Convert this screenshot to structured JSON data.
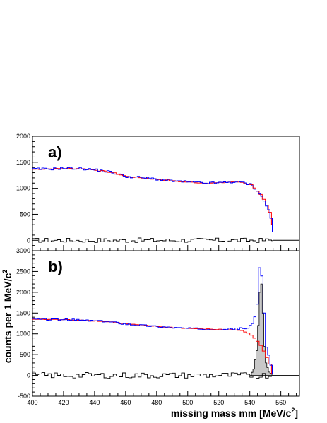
{
  "colors": {
    "data_hist": "#0000ff",
    "fit_curve": "#ff0000",
    "residual_hist": "#000000",
    "signal_fill": "#c8c8c8",
    "frame": "#000000"
  },
  "labels": {
    "xlabel_main": "missing mass mm [MeV/c",
    "xlabel_sup": "2",
    "xlabel_end": "]",
    "ylabel_main": "counts per 1 MeV/c",
    "ylabel_sup": "2"
  },
  "chart_data": [
    {
      "type": "histogram",
      "panel_label": "a)",
      "xlim": [
        400,
        572
      ],
      "ylim": [
        -200,
        2000
      ],
      "x_ticks": [],
      "y_ticks": [
        "0",
        "500",
        "1000",
        "1500",
        "2000"
      ],
      "grid": false,
      "series": [
        {
          "role": "data",
          "x": [
            400,
            410,
            420,
            430,
            440,
            450,
            460,
            470,
            480,
            490,
            500,
            510,
            520,
            530,
            535,
            540,
            543,
            546,
            549,
            552,
            554,
            555
          ],
          "y": [
            1370,
            1370,
            1385,
            1380,
            1355,
            1310,
            1225,
            1205,
            1175,
            1140,
            1120,
            1100,
            1105,
            1125,
            1110,
            1070,
            990,
            880,
            740,
            540,
            310,
            0
          ]
        },
        {
          "role": "fit",
          "x": [
            400,
            410,
            420,
            430,
            440,
            450,
            460,
            470,
            480,
            490,
            500,
            510,
            520,
            530,
            535,
            540,
            543,
            546,
            549,
            552,
            554,
            555
          ],
          "y": [
            1365,
            1372,
            1380,
            1378,
            1350,
            1305,
            1225,
            1200,
            1172,
            1138,
            1120,
            1100,
            1105,
            1128,
            1112,
            1065,
            985,
            875,
            735,
            530,
            300,
            0
          ]
        },
        {
          "role": "residual",
          "x": [
            400,
            555,
            572
          ],
          "y": [
            0,
            0,
            0
          ]
        }
      ]
    },
    {
      "type": "histogram",
      "panel_label": "b)",
      "xlim": [
        400,
        572
      ],
      "ylim": [
        -500,
        3000
      ],
      "x_ticks": [
        "400",
        "420",
        "440",
        "460",
        "480",
        "500",
        "520",
        "540",
        "560"
      ],
      "y_ticks": [
        "-500",
        "0",
        "500",
        "1000",
        "1500",
        "2000",
        "2500",
        "3000"
      ],
      "grid": false,
      "series": [
        {
          "role": "data",
          "x": [
            400,
            410,
            420,
            430,
            440,
            450,
            460,
            470,
            480,
            490,
            500,
            510,
            520,
            530,
            535,
            538,
            540,
            542,
            544,
            545,
            546,
            547,
            548,
            549,
            550,
            552,
            554,
            555
          ],
          "y": [
            1350,
            1345,
            1340,
            1330,
            1310,
            1285,
            1235,
            1205,
            1175,
            1150,
            1130,
            1115,
            1110,
            1120,
            1130,
            1140,
            1200,
            1300,
            1700,
            2300,
            2900,
            2400,
            1800,
            1200,
            700,
            400,
            100,
            0
          ]
        },
        {
          "role": "fit",
          "x": [
            400,
            410,
            420,
            430,
            440,
            450,
            460,
            470,
            480,
            490,
            500,
            510,
            520,
            530,
            535,
            538,
            540,
            543,
            546,
            549,
            552,
            554,
            555
          ],
          "y": [
            1350,
            1345,
            1340,
            1330,
            1310,
            1285,
            1235,
            1205,
            1175,
            1150,
            1130,
            1115,
            1105,
            1095,
            1070,
            1020,
            960,
            860,
            720,
            520,
            280,
            60,
            0
          ]
        },
        {
          "role": "signal",
          "x": [
            540,
            542,
            544,
            545,
            546,
            547,
            548,
            549,
            550,
            552,
            555
          ],
          "y": [
            0,
            150,
            600,
            1200,
            2000,
            2200,
            1500,
            700,
            300,
            80,
            0
          ]
        },
        {
          "role": "residual",
          "x": [
            400,
            555,
            572
          ],
          "y": [
            0,
            0,
            0
          ]
        }
      ]
    }
  ]
}
